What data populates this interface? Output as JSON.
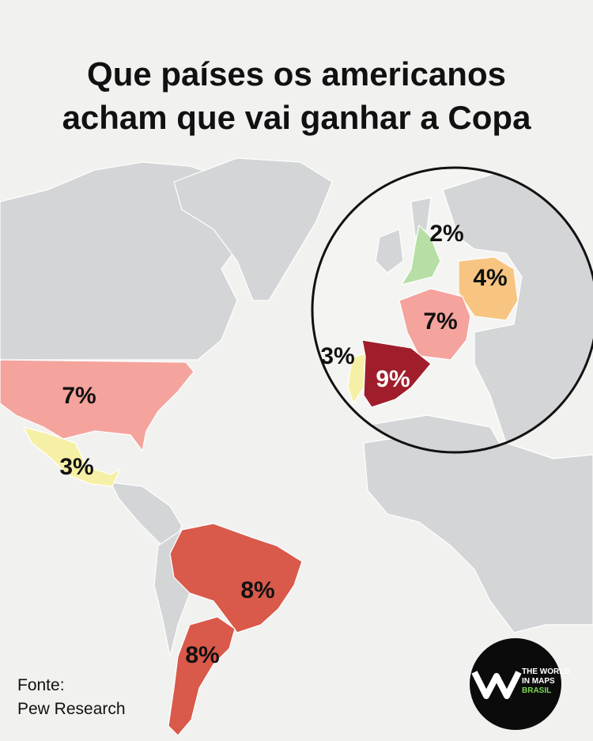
{
  "title": [
    "Que países os americanos",
    "acham que vai ganhar a Copa"
  ],
  "regions": [
    {
      "value": 7,
      "label": "7%",
      "color": "#f5a39d"
    },
    {
      "value": 3,
      "label": "3%",
      "color": "#f6f0a6"
    },
    {
      "value": 8,
      "label": "8%",
      "color": "#d9594a"
    },
    {
      "value": 8,
      "label": "8%",
      "color": "#d9594a"
    },
    {
      "value": 2,
      "label": "2%",
      "color": "#b7dfa5"
    },
    {
      "value": 4,
      "label": "4%",
      "color": "#f7c581"
    },
    {
      "value": 7,
      "label": "7%",
      "color": "#f5a39d"
    },
    {
      "value": 3,
      "label": "3%",
      "color": "#f6f0a6"
    },
    {
      "value": 9,
      "label": "9%",
      "color": "#a01e2c"
    }
  ],
  "source": [
    "Fonte:",
    "Pew Research"
  ],
  "logo": [
    "THE WORLD",
    "IN MAPS",
    "BRASIL"
  ]
}
